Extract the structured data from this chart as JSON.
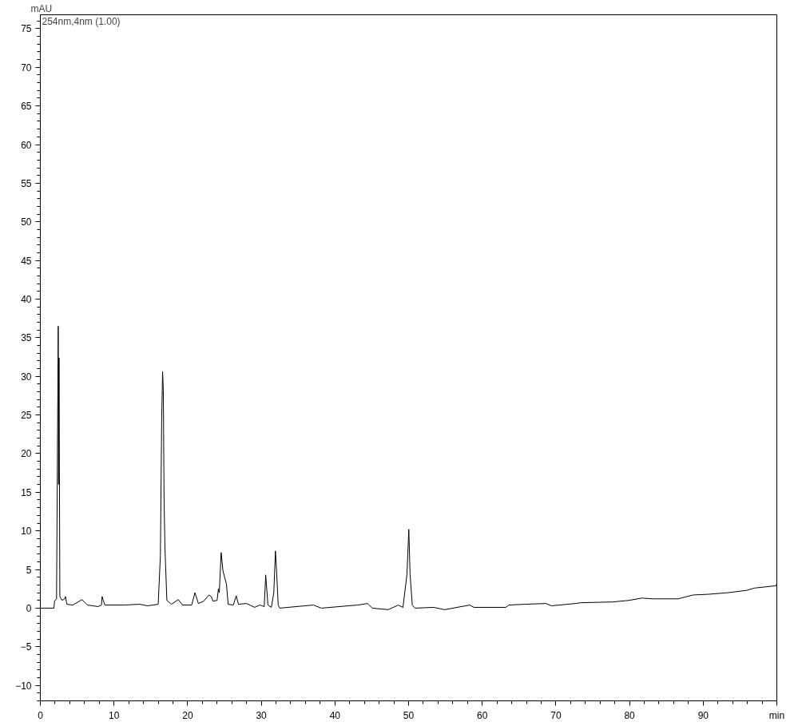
{
  "chart_data": {
    "type": "line",
    "ylabel": "mAU",
    "annotations": [
      "254nm,4nm (1.00)"
    ],
    "grid": false,
    "marker": "none",
    "line_style": "solid",
    "xlim": [
      0,
      100
    ],
    "ylim": [
      -12,
      76.8
    ],
    "xticks": [
      0,
      10,
      20,
      30,
      40,
      50,
      60,
      70,
      80,
      90,
      {
        "value": 100,
        "label": "min"
      },
      {
        "value": 2,
        "label": null
      },
      {
        "value": 4,
        "label": null
      },
      {
        "value": 6,
        "label": null
      },
      {
        "value": 8,
        "label": null
      },
      {
        "value": 12,
        "label": null
      },
      {
        "value": 14,
        "label": null
      },
      {
        "value": 16,
        "label": null
      },
      {
        "value": 18,
        "label": null
      },
      {
        "value": 22,
        "label": null
      },
      {
        "value": 24,
        "label": null
      },
      {
        "value": 26,
        "label": null
      },
      {
        "value": 28,
        "label": null
      },
      {
        "value": 32,
        "label": null
      },
      {
        "value": 34,
        "label": null
      },
      {
        "value": 36,
        "label": null
      },
      {
        "value": 38,
        "label": null
      },
      {
        "value": 42,
        "label": null
      },
      {
        "value": 44,
        "label": null
      },
      {
        "value": 46,
        "label": null
      },
      {
        "value": 48,
        "label": null
      },
      {
        "value": 52,
        "label": null
      },
      {
        "value": 54,
        "label": null
      },
      {
        "value": 56,
        "label": null
      },
      {
        "value": 58,
        "label": null
      },
      {
        "value": 62,
        "label": null
      },
      {
        "value": 64,
        "label": null
      },
      {
        "value": 66,
        "label": null
      },
      {
        "value": 68,
        "label": null
      },
      {
        "value": 72,
        "label": null
      },
      {
        "value": 74,
        "label": null
      },
      {
        "value": 76,
        "label": null
      },
      {
        "value": 78,
        "label": null
      },
      {
        "value": 82,
        "label": null
      },
      {
        "value": 84,
        "label": null
      },
      {
        "value": 86,
        "label": null
      },
      {
        "value": 88,
        "label": null
      },
      {
        "value": 92,
        "label": null
      },
      {
        "value": 94,
        "label": null
      },
      {
        "value": 96,
        "label": null
      },
      {
        "value": 98,
        "label": null
      }
    ],
    "yticks": [
      -10,
      -5,
      0,
      5,
      10,
      15,
      20,
      25,
      30,
      35,
      40,
      45,
      50,
      55,
      60,
      65,
      70,
      75,
      {
        "value": -12,
        "label": null
      },
      {
        "value": -11,
        "label": null
      },
      {
        "value": -9,
        "label": null
      },
      {
        "value": -8,
        "label": null
      },
      {
        "value": -7,
        "label": null
      },
      {
        "value": -6,
        "label": null
      },
      {
        "value": -4,
        "label": null
      },
      {
        "value": -3,
        "label": null
      },
      {
        "value": -2,
        "label": null
      },
      {
        "value": -1,
        "label": null
      },
      {
        "value": 1,
        "label": null
      },
      {
        "value": 2,
        "label": null
      },
      {
        "value": 3,
        "label": null
      },
      {
        "value": 4,
        "label": null
      },
      {
        "value": 6,
        "label": null
      },
      {
        "value": 7,
        "label": null
      },
      {
        "value": 8,
        "label": null
      },
      {
        "value": 9,
        "label": null
      },
      {
        "value": 11,
        "label": null
      },
      {
        "value": 12,
        "label": null
      },
      {
        "value": 13,
        "label": null
      },
      {
        "value": 14,
        "label": null
      },
      {
        "value": 16,
        "label": null
      },
      {
        "value": 17,
        "label": null
      },
      {
        "value": 18,
        "label": null
      },
      {
        "value": 19,
        "label": null
      },
      {
        "value": 21,
        "label": null
      },
      {
        "value": 22,
        "label": null
      },
      {
        "value": 23,
        "label": null
      },
      {
        "value": 24,
        "label": null
      },
      {
        "value": 26,
        "label": null
      },
      {
        "value": 27,
        "label": null
      },
      {
        "value": 28,
        "label": null
      },
      {
        "value": 29,
        "label": null
      },
      {
        "value": 31,
        "label": null
      },
      {
        "value": 32,
        "label": null
      },
      {
        "value": 33,
        "label": null
      },
      {
        "value": 34,
        "label": null
      },
      {
        "value": 36,
        "label": null
      },
      {
        "value": 37,
        "label": null
      },
      {
        "value": 38,
        "label": null
      },
      {
        "value": 39,
        "label": null
      },
      {
        "value": 41,
        "label": null
      },
      {
        "value": 42,
        "label": null
      },
      {
        "value": 43,
        "label": null
      },
      {
        "value": 44,
        "label": null
      },
      {
        "value": 46,
        "label": null
      },
      {
        "value": 47,
        "label": null
      },
      {
        "value": 48,
        "label": null
      },
      {
        "value": 49,
        "label": null
      },
      {
        "value": 51,
        "label": null
      },
      {
        "value": 52,
        "label": null
      },
      {
        "value": 53,
        "label": null
      },
      {
        "value": 54,
        "label": null
      },
      {
        "value": 56,
        "label": null
      },
      {
        "value": 57,
        "label": null
      },
      {
        "value": 58,
        "label": null
      },
      {
        "value": 59,
        "label": null
      },
      {
        "value": 61,
        "label": null
      },
      {
        "value": 62,
        "label": null
      },
      {
        "value": 63,
        "label": null
      },
      {
        "value": 64,
        "label": null
      },
      {
        "value": 66,
        "label": null
      },
      {
        "value": 67,
        "label": null
      },
      {
        "value": 68,
        "label": null
      },
      {
        "value": 69,
        "label": null
      },
      {
        "value": 71,
        "label": null
      },
      {
        "value": 72,
        "label": null
      },
      {
        "value": 73,
        "label": null
      },
      {
        "value": 74,
        "label": null
      },
      {
        "value": 76,
        "label": null
      }
    ],
    "series": [
      {
        "color": "#000000",
        "x": [
          0,
          1.85,
          1.93,
          2.2,
          2.43,
          2.48,
          2.54,
          2.65,
          2.94,
          3.3,
          3.41,
          3.6,
          4.4,
          5.66,
          6.39,
          7.84,
          8.3,
          8.39,
          8.75,
          11.3,
          13.5,
          14.56,
          16.0,
          16.3,
          16.48,
          16.6,
          16.7,
          16.8,
          16.92,
          17.18,
          17.8,
          18.74,
          19.3,
          20.55,
          20.99,
          21.46,
          22.19,
          22.9,
          23.2,
          23.45,
          24.0,
          24.18,
          24.3,
          24.55,
          24.8,
          25.27,
          25.5,
          26.2,
          26.6,
          26.9,
          28.0,
          29.1,
          29.8,
          30.4,
          30.6,
          30.9,
          31.37,
          31.7,
          31.92,
          32.06,
          32.3,
          32.5,
          37.07,
          38.16,
          43.06,
          44.44,
          45.07,
          47.24,
          48.6,
          49.24,
          49.78,
          50.03,
          50.2,
          50.5,
          50.87,
          53.4,
          54.9,
          58.3,
          58.86,
          63.2,
          63.6,
          65.76,
          68.66,
          69.4,
          72.66,
          73.4,
          77.7,
          79.9,
          81.7,
          83.2,
          86.6,
          88.6,
          90.8,
          93.4,
          95.9,
          96.98,
          99.9,
          100
        ],
        "values": [
          0,
          0,
          0.9,
          1.2,
          36.5,
          16,
          32.4,
          1.5,
          1.0,
          1.2,
          1.5,
          0.5,
          0.4,
          1.1,
          0.4,
          0.2,
          0.4,
          1.5,
          0.4,
          0.4,
          0.5,
          0.3,
          0.5,
          6.8,
          24.7,
          30.6,
          28.2,
          14.0,
          7.8,
          1.0,
          0.5,
          1.1,
          0.4,
          0.4,
          2.0,
          0.6,
          0.9,
          1.7,
          1.5,
          0.9,
          1.0,
          2.5,
          2.0,
          7.2,
          4.8,
          3.1,
          0.5,
          0.4,
          1.6,
          0.5,
          0.6,
          0.1,
          0.4,
          0.2,
          4.3,
          0.4,
          0.1,
          2.0,
          7.4,
          5.1,
          0.4,
          0.0,
          0.4,
          0.0,
          0.4,
          0.6,
          0.0,
          -0.2,
          0.4,
          0.1,
          4.4,
          10.2,
          4.4,
          0.4,
          0.0,
          0.1,
          -0.2,
          0.4,
          0.1,
          0.1,
          0.4,
          0.5,
          0.6,
          0.3,
          0.6,
          0.7,
          0.8,
          1.0,
          1.3,
          1.2,
          1.2,
          1.7,
          1.8,
          2.0,
          2.3,
          2.6,
          2.9,
          3.2
        ]
      }
    ]
  }
}
